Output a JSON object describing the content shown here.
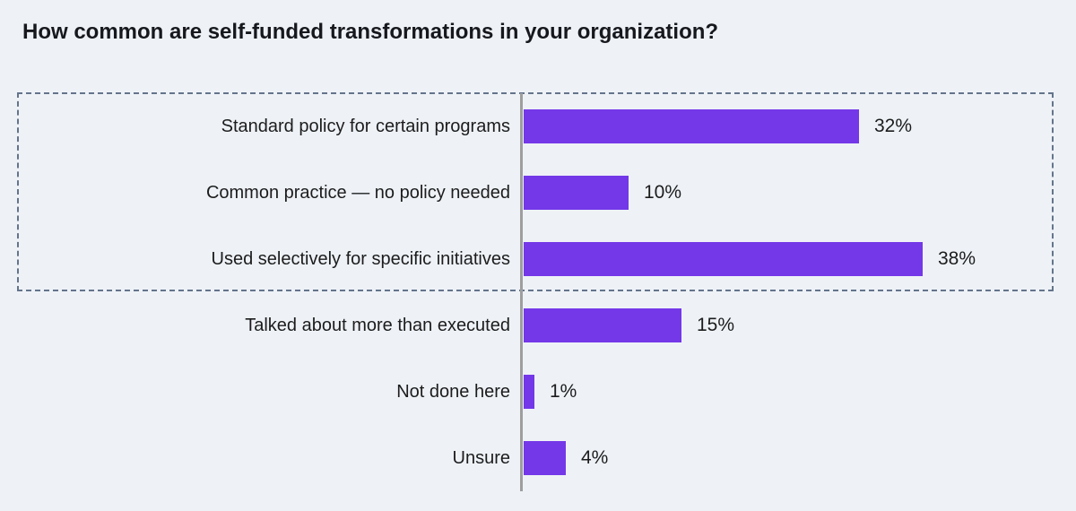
{
  "title": "How common are self-funded transformations in your organization?",
  "chart_data": {
    "type": "bar",
    "orientation": "horizontal",
    "title": "How common are self-funded transformations in your organization?",
    "categories": [
      "Standard policy for certain programs",
      "Common practice — no policy needed",
      "Used selectively for specific initiatives",
      "Talked about more than executed",
      "Not done here",
      "Unsure"
    ],
    "values": [
      32,
      10,
      38,
      15,
      1,
      4
    ],
    "value_labels": [
      "32%",
      "10%",
      "38%",
      "15%",
      "1%",
      "4%"
    ],
    "xlabel": "",
    "ylabel": "",
    "xlim": [
      0,
      50
    ],
    "grid": false,
    "legend": false,
    "highlight_box_rows": [
      0,
      1,
      2
    ],
    "colors": {
      "bar": "#7438e8",
      "background": "#eef2f7",
      "axis": "#9e9e9e",
      "highlight_border": "#64748b",
      "text": "#16181d"
    }
  }
}
